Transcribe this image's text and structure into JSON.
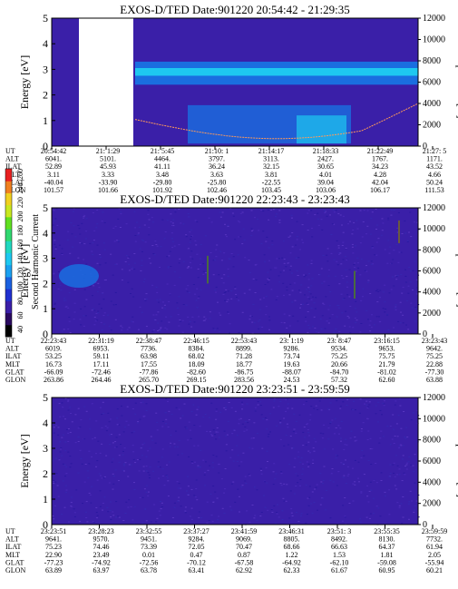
{
  "colors": {
    "background": "#3a1fa8",
    "bright": "#1ec8f0",
    "mid": "#1a6ee0",
    "gap": "#ffffff",
    "temp_line": "#ff9a5a"
  },
  "colorbar": {
    "label": "Second Harmonic Current",
    "ticks": [
      "40",
      "60",
      "80",
      "100",
      "120",
      "140",
      "160",
      "180",
      "200",
      "220",
      "240",
      "260"
    ]
  },
  "chart_data": [
    {
      "type": "heatmap",
      "title": "EXOS-D/TED   Date:901220   20:54:42 - 21:29:35",
      "ylabel": "Energy [eV]",
      "y2label": "Temperature [K]",
      "ylim": [
        0,
        5
      ],
      "y2lim": [
        0,
        12000
      ],
      "yticks": [
        "0",
        "1",
        "2",
        "3",
        "4",
        "5"
      ],
      "y2ticks": [
        "0",
        "2000",
        "4000",
        "6000",
        "8000",
        "10000",
        "12000"
      ],
      "row_labels": [
        "UT",
        "ALT",
        "ILAT",
        "MLT",
        "GLAT",
        "GLON"
      ],
      "columns": [
        [
          "20:54:42",
          "6041.",
          "52.89",
          "3.11",
          "-40.04",
          "101.57"
        ],
        [
          "21: 1:29",
          "5101.",
          "45.93",
          "3.33",
          "-33.90",
          "101.66"
        ],
        [
          "21: 5:45",
          "4464.",
          "41.11",
          "3.48",
          "-29.80",
          "101.92"
        ],
        [
          "21:10: 1",
          "3797.",
          "36.24",
          "3.63",
          "-25.80",
          "102.46"
        ],
        [
          "21:14:17",
          "3113.",
          "32.15",
          "3.81",
          "-22.55",
          "103.45"
        ],
        [
          "21:18:33",
          "2427.",
          "30.65",
          "4.01",
          "39.04",
          "103.06"
        ],
        [
          "21:22:49",
          "1767.",
          "34.23",
          "4.28",
          "42.04",
          "106.17"
        ],
        [
          "21:27: 5",
          "1171.",
          "43.52",
          "4.66",
          "50.24",
          "111.53"
        ]
      ]
    },
    {
      "type": "heatmap",
      "title": "EXOS-D/TED   Date:901220   22:23:43 - 23:23:43",
      "ylabel": "Energy [eV]",
      "y2label": "Temperature [K]",
      "ylim": [
        0,
        5
      ],
      "y2lim": [
        0,
        12000
      ],
      "yticks": [
        "0",
        "1",
        "2",
        "3",
        "4",
        "5"
      ],
      "y2ticks": [
        "0",
        "2000",
        "4000",
        "6000",
        "8000",
        "10000",
        "12000"
      ],
      "row_labels": [
        "UT",
        "ALT",
        "ILAT",
        "MLT",
        "GLAT",
        "GLON"
      ],
      "columns": [
        [
          "22:23:43",
          "6019.",
          "53.25",
          "16.73",
          "-66.09",
          "263.86"
        ],
        [
          "22:31:19",
          "6953.",
          "59.11",
          "17.11",
          "-72.46",
          "264.46"
        ],
        [
          "22:38:47",
          "7736.",
          "63.98",
          "17.55",
          "-77.86",
          "265.70"
        ],
        [
          "22:46:15",
          "8384.",
          "68.02",
          "18.09",
          "-82.60",
          "269.15"
        ],
        [
          "22:53:43",
          "8899.",
          "71.28",
          "18.77",
          "-86.75",
          "283.56"
        ],
        [
          "23: 1:19",
          "9286.",
          "73.74",
          "19.63",
          "-88.07",
          "24.53"
        ],
        [
          "23: 8:47",
          "9534.",
          "75.25",
          "20.66",
          "-84.70",
          "57.32"
        ],
        [
          "23:16:15",
          "9653.",
          "75.75",
          "21.79",
          "-81.02",
          "62.60"
        ],
        [
          "23:23:43",
          "9642.",
          "75.25",
          "22.88",
          "-77.30",
          "63.88"
        ]
      ]
    },
    {
      "type": "heatmap",
      "title": "EXOS-D/TED   Date:901220   23:23:51 - 23:59:59",
      "ylabel": "Energy [eV]",
      "y2label": "Temperature [K]",
      "ylim": [
        0,
        5
      ],
      "y2lim": [
        0,
        12000
      ],
      "yticks": [
        "0",
        "1",
        "2",
        "3",
        "4",
        "5"
      ],
      "y2ticks": [
        "0",
        "2000",
        "4000",
        "6000",
        "8000",
        "10000",
        "12000"
      ],
      "row_labels": [
        "UT",
        "ALT",
        "ILAT",
        "MLT",
        "GLAT",
        "GLON"
      ],
      "columns": [
        [
          "23:23:51",
          "9641.",
          "75.23",
          "22.90",
          "-77.23",
          "63.89"
        ],
        [
          "23:28:23",
          "9570.",
          "74.46",
          "23.49",
          "-74.92",
          "63.97"
        ],
        [
          "23:32:55",
          "9451.",
          "73.39",
          "0.01",
          "-72.56",
          "63.78"
        ],
        [
          "23:37:27",
          "9284.",
          "72.05",
          "0.47",
          "-70.12",
          "63.41"
        ],
        [
          "23:41:59",
          "9069.",
          "70.47",
          "0.87",
          "-67.58",
          "62.92"
        ],
        [
          "23:46:31",
          "8805.",
          "68.66",
          "1.22",
          "-64.92",
          "62.33"
        ],
        [
          "23:51: 3",
          "8492.",
          "66.63",
          "1.53",
          "-62.10",
          "61.67"
        ],
        [
          "23:55:35",
          "8130.",
          "64.37",
          "1.81",
          "-59.08",
          "60.95"
        ],
        [
          "23:59:59",
          "7732.",
          "61.94",
          "2.05",
          "-55.94",
          "60.21"
        ]
      ]
    }
  ]
}
